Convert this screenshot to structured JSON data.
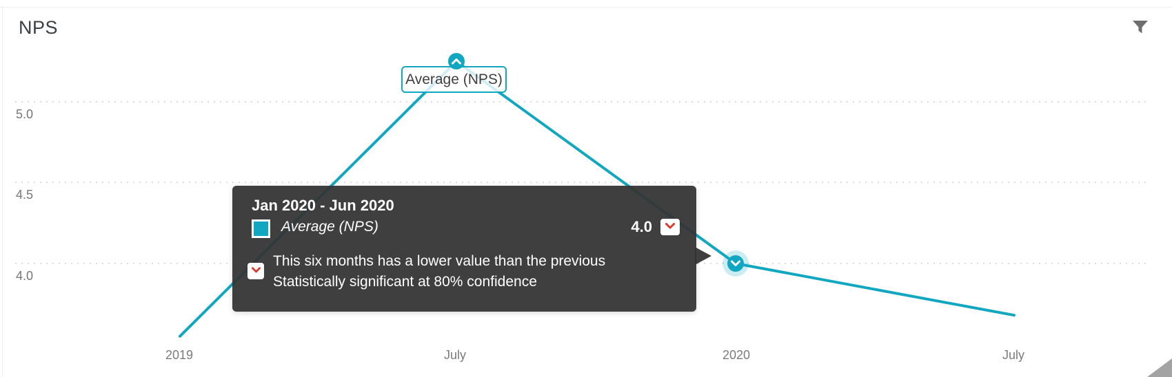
{
  "header": {
    "title": "NPS"
  },
  "chart_data": {
    "type": "line",
    "title": "NPS",
    "categories": [
      "2019",
      "July",
      "2020",
      "July"
    ],
    "series": [
      {
        "name": "Average (NPS)",
        "values": [
          3.55,
          5.25,
          4.0,
          3.68
        ]
      }
    ],
    "ytick_labels": [
      "5.0",
      "4.5",
      "4.0"
    ],
    "yticks": [
      5.0,
      4.5,
      4.0
    ],
    "ylim": [
      3.4,
      5.35
    ],
    "grid": "horizontal-dotted",
    "legend_position": "none",
    "series_label_text": "Average (NPS)",
    "markers": [
      {
        "index": 1,
        "direction": "up"
      },
      {
        "index": 2,
        "direction": "down"
      }
    ]
  },
  "tooltip": {
    "period": "Jan 2020 - Jun 2020",
    "series": "Average (NPS)",
    "value": "4.0",
    "trend": "down",
    "note_line1": "This six months has a lower value than the previous",
    "note_line2": "Statistically significant at 80% confidence"
  },
  "colors": {
    "accent": "#12a7c0",
    "negative": "#d63a2f",
    "tooltip_bg": "#333333",
    "grid": "#dcdcdc",
    "axis_text": "#767676",
    "title_text": "#3b3f42",
    "icon_gray": "#6e6e6e"
  }
}
